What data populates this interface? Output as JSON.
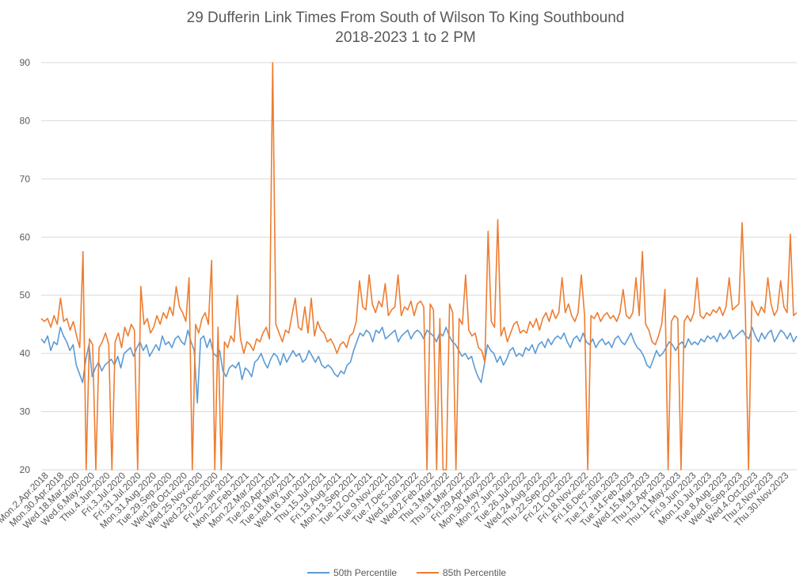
{
  "chart_data": {
    "type": "line",
    "title": "29 Dufferin Link Times From South of Wilson To King Southbound",
    "subtitle": "2018-2023 1 to 2 PM",
    "xlabel": "",
    "ylabel": "",
    "ylim": [
      20,
      90
    ],
    "y_ticks": [
      "20",
      "30",
      "40",
      "50",
      "60",
      "70",
      "80",
      "90"
    ],
    "grid": true,
    "legend_position": "bottom",
    "x_tick_labels": [
      "Mon.2.Apr.2018",
      "Mon.30.Apr.2018",
      "Wed.18.Mar.2020",
      "Wed.6.May.2020",
      "Thu.4.Jun.2020",
      "Fri.3.Jul.2020",
      "Fri.31.Jul.2020",
      "Mon.31.Aug.2020",
      "Tue.29.Sep.2020",
      "Wed.28.Oct.2020",
      "Wed.25.Nov.2020",
      "Wed.23.Dec.2020",
      "Fri.22.Jan.2021",
      "Mon.22.Feb.2021",
      "Mon.22.Mar.2021",
      "Tue.20.Apr.2021",
      "Tue.18.May.2021",
      "Wed.16.Jun.2021",
      "Thu.15.Jul.2021",
      "Fri.13.Aug.2021",
      "Mon.13.Sep.2021",
      "Tue.12.Oct.2021",
      "Tue.9.Nov.2021",
      "Tue.7.Dec.2021",
      "Wed.5.Jan.2022",
      "Wed.2.Feb.2022",
      "Thu.3.Mar.2022",
      "Thu.31.Mar.2022",
      "Fri.29.Apr.2022",
      "Mon.30.May.2022",
      "Mon.27.Jun.2022",
      "Tue.26.Jul.2022",
      "Wed.24.Aug.2022",
      "Thu.22.Sep.2022",
      "Fri.21.Oct.2022",
      "Fri.18.Nov.2022",
      "Fri.16.Dec.2022",
      "Tue.17.Jan.2023",
      "Tue.14.Feb.2023",
      "Wed.15.Mar.2023",
      "Thu.13.Apr.2023",
      "Thu.11.May.2023",
      "Fri.9.Jun.2023",
      "Mon.10.Jul.2023",
      "Tue.8.Aug.2023",
      "Wed.6.Sep.2023",
      "Wed.4.Oct.2023",
      "Thu.2.Nov.2023",
      "Thu.30.Nov.2023"
    ],
    "series": [
      {
        "name": "50th Percentile",
        "color": "#5B9BD5",
        "values": [
          42.5,
          41.8,
          43.0,
          40.5,
          42.0,
          41.5,
          44.5,
          43.0,
          42.0,
          40.5,
          41.5,
          38.0,
          36.5,
          35.0,
          39.0,
          41.5,
          36.0,
          37.5,
          38.5,
          37.0,
          38.0,
          38.5,
          39.0,
          38.0,
          39.5,
          37.5,
          40.0,
          40.5,
          41.0,
          39.5,
          41.0,
          42.0,
          40.5,
          41.5,
          39.5,
          40.5,
          41.5,
          40.5,
          43.0,
          41.5,
          42.0,
          41.0,
          42.5,
          43.0,
          42.0,
          41.5,
          44.0,
          42.0,
          40.5,
          31.5,
          42.5,
          43.0,
          41.0,
          42.5,
          40.0,
          39.5,
          40.5,
          37.0,
          36.0,
          37.5,
          38.0,
          37.5,
          38.5,
          35.5,
          37.5,
          37.0,
          36.0,
          38.5,
          39.0,
          40.0,
          38.5,
          37.5,
          39.0,
          40.0,
          39.5,
          38.0,
          40.0,
          38.5,
          39.5,
          40.5,
          39.5,
          40.0,
          38.5,
          39.0,
          40.5,
          39.5,
          38.5,
          39.5,
          38.0,
          37.5,
          38.0,
          37.5,
          36.5,
          36.0,
          37.0,
          36.5,
          38.0,
          38.5,
          40.5,
          42.0,
          43.5,
          43.0,
          44.0,
          43.5,
          42.0,
          44.0,
          43.5,
          44.5,
          42.5,
          43.0,
          43.5,
          44.0,
          42.0,
          43.0,
          43.5,
          44.0,
          42.5,
          43.5,
          44.0,
          43.5,
          42.5,
          44.0,
          43.5,
          43.0,
          42.0,
          43.5,
          43.0,
          44.5,
          43.0,
          42.0,
          41.5,
          40.5,
          39.5,
          40.0,
          39.0,
          39.5,
          37.5,
          36.0,
          35.0,
          38.0,
          41.5,
          40.5,
          40.0,
          38.5,
          39.5,
          38.0,
          39.0,
          40.5,
          41.0,
          39.5,
          40.0,
          39.5,
          41.0,
          40.5,
          41.5,
          40.0,
          41.5,
          42.0,
          41.0,
          42.5,
          41.5,
          42.5,
          43.0,
          42.5,
          43.5,
          42.0,
          41.0,
          42.5,
          43.0,
          42.0,
          43.5,
          42.0,
          41.5,
          42.5,
          41.0,
          42.0,
          42.5,
          41.5,
          42.0,
          41.0,
          42.5,
          43.0,
          42.0,
          41.5,
          42.5,
          43.5,
          42.0,
          41.0,
          40.5,
          39.5,
          38.0,
          37.5,
          39.0,
          40.5,
          39.5,
          40.0,
          41.0,
          42.0,
          41.5,
          40.5,
          41.5,
          42.0,
          41.0,
          42.5,
          41.5,
          42.0,
          41.5,
          42.5,
          42.0,
          43.0,
          42.5,
          43.0,
          42.0,
          43.5,
          42.5,
          43.0,
          44.0,
          42.5,
          43.0,
          43.5,
          44.0,
          43.0,
          42.5,
          44.5,
          43.0,
          42.0,
          43.5,
          42.5,
          43.5,
          44.0,
          42.0,
          43.0,
          44.0,
          43.5,
          42.5,
          43.5,
          42.0,
          43.0
        ]
      },
      {
        "name": "85th Percentile",
        "color": "#ED7D31",
        "values": [
          46.0,
          45.5,
          46.0,
          44.5,
          46.5,
          45.0,
          49.5,
          45.5,
          46.0,
          44.0,
          45.5,
          43.0,
          41.0,
          57.5,
          20.0,
          42.5,
          41.5,
          20.0,
          41.0,
          42.0,
          43.5,
          41.5,
          20.0,
          42.0,
          43.5,
          41.0,
          44.5,
          43.0,
          45.0,
          44.0,
          20.0,
          51.5,
          45.0,
          46.0,
          43.5,
          44.5,
          46.5,
          45.0,
          47.0,
          46.0,
          48.0,
          46.5,
          51.5,
          48.0,
          47.0,
          45.5,
          53.0,
          20.0,
          45.0,
          43.5,
          46.0,
          47.0,
          45.0,
          56.0,
          20.0,
          44.5,
          20.0,
          42.0,
          41.0,
          43.0,
          42.0,
          50.0,
          42.5,
          40.0,
          42.0,
          41.5,
          40.5,
          42.5,
          42.0,
          43.5,
          44.5,
          42.5,
          90.0,
          45.0,
          43.5,
          42.0,
          44.0,
          43.5,
          46.5,
          49.5,
          44.5,
          44.0,
          48.0,
          43.5,
          49.5,
          43.0,
          45.5,
          44.0,
          43.5,
          42.0,
          42.5,
          41.5,
          40.0,
          41.5,
          42.0,
          41.0,
          43.0,
          43.5,
          45.5,
          52.5,
          48.0,
          47.5,
          53.5,
          48.5,
          47.0,
          49.0,
          48.0,
          52.0,
          46.5,
          47.5,
          48.0,
          53.5,
          46.5,
          48.0,
          47.5,
          49.0,
          46.5,
          48.5,
          49.0,
          48.0,
          20.0,
          48.5,
          47.5,
          20.0,
          46.0,
          20.0,
          20.0,
          48.5,
          47.0,
          20.0,
          46.0,
          45.0,
          53.5,
          44.0,
          43.0,
          43.5,
          41.0,
          40.5,
          38.5,
          61.0,
          45.5,
          44.5,
          63.0,
          43.0,
          44.5,
          42.0,
          43.5,
          45.0,
          45.5,
          43.5,
          44.0,
          43.5,
          45.5,
          44.5,
          46.0,
          44.0,
          46.0,
          47.0,
          45.5,
          47.5,
          46.0,
          47.0,
          53.0,
          47.0,
          48.5,
          46.5,
          45.5,
          47.0,
          53.5,
          46.5,
          20.0,
          46.5,
          46.0,
          47.0,
          45.5,
          46.5,
          47.0,
          46.0,
          46.5,
          45.5,
          47.0,
          51.0,
          46.5,
          46.0,
          47.0,
          53.0,
          46.5,
          57.5,
          45.0,
          44.0,
          42.0,
          41.5,
          43.0,
          45.0,
          51.0,
          20.0,
          45.5,
          46.5,
          46.0,
          20.0,
          45.5,
          46.5,
          45.5,
          47.0,
          53.0,
          46.5,
          46.0,
          47.0,
          46.5,
          47.5,
          47.0,
          48.0,
          46.5,
          48.0,
          53.0,
          47.5,
          48.0,
          48.5,
          62.5,
          48.0,
          20.0,
          49.0,
          47.5,
          46.5,
          48.0,
          47.0,
          53.0,
          48.5,
          46.5,
          47.5,
          52.5,
          48.0,
          47.0,
          60.5,
          46.5,
          47.0
        ]
      }
    ]
  }
}
